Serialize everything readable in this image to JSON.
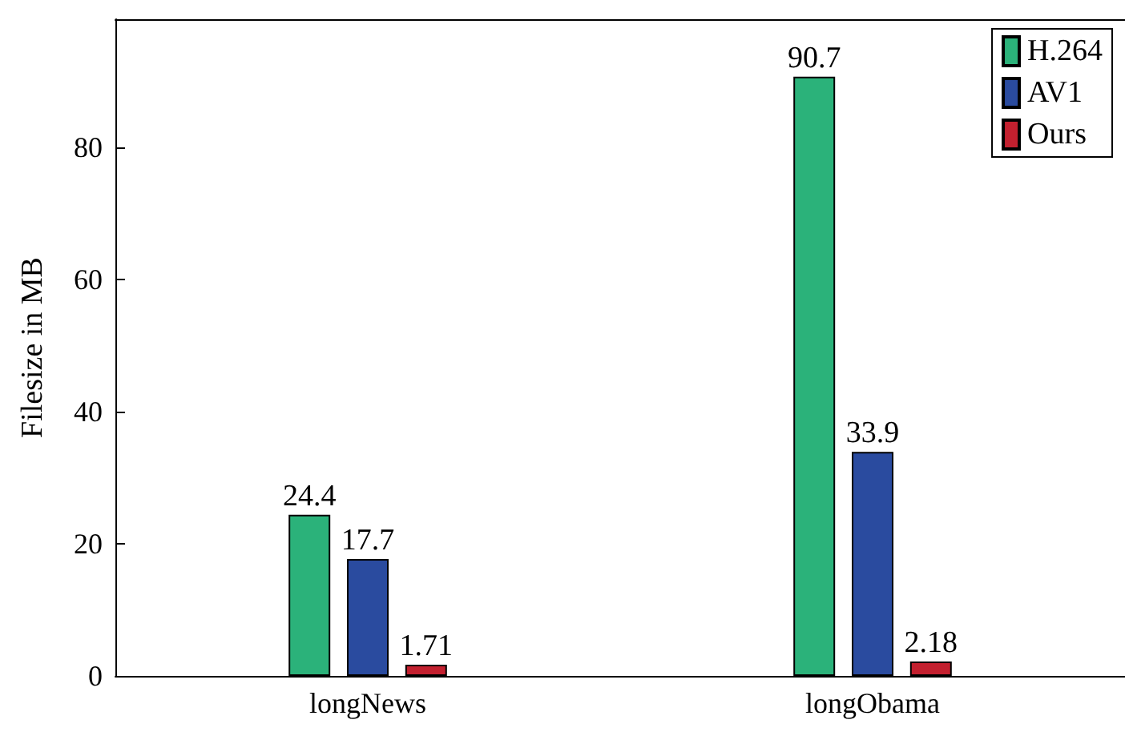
{
  "chart_data": {
    "type": "bar",
    "ylabel": "Filesize in MB",
    "categories": [
      "longNews",
      "longObama"
    ],
    "series": [
      {
        "name": "H.264",
        "color": "#2bb27a",
        "values": [
          24.4,
          90.7
        ]
      },
      {
        "name": "AV1",
        "color": "#2a4b9f",
        "values": [
          17.7,
          33.9
        ]
      },
      {
        "name": "Ours",
        "color": "#c3202f",
        "values": [
          1.71,
          2.18
        ]
      }
    ],
    "ylim": [
      0,
      99.4
    ],
    "yticks": [
      0,
      20,
      40,
      60,
      80
    ],
    "grid": false,
    "legend": "top right",
    "data_labels": true
  }
}
